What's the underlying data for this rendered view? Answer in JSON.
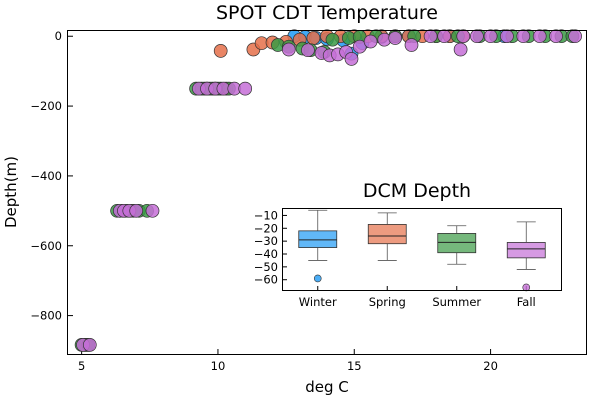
{
  "chart_data": [
    {
      "type": "scatter",
      "title": "SPOT CDT Temperature",
      "xlabel": "deg C",
      "ylabel": "Depth(m)",
      "xlim": [
        4.5,
        23.5
      ],
      "ylim": [
        -910,
        15
      ],
      "xticks": [
        5,
        10,
        15,
        20
      ],
      "yticks": [
        0,
        -200,
        -400,
        -600,
        -800
      ],
      "grid": false,
      "legend": "none",
      "series": [
        {
          "color": "#1e9af5",
          "points": [
            [
              5.1,
              -884
            ],
            [
              5.2,
              -884
            ],
            [
              6.4,
              -500
            ],
            [
              6.6,
              -500
            ],
            [
              6.9,
              -500
            ],
            [
              9.5,
              -150
            ],
            [
              9.8,
              -150
            ],
            [
              10.1,
              -150
            ],
            [
              12.8,
              0
            ],
            [
              13.2,
              -2
            ],
            [
              13.6,
              -5
            ],
            [
              14.0,
              -8
            ],
            [
              14.6,
              -12
            ],
            [
              14.9,
              -50
            ],
            [
              15.3,
              -20
            ],
            [
              16.0,
              -2
            ],
            [
              17.0,
              0
            ],
            [
              18.5,
              0
            ],
            [
              20.5,
              0
            ]
          ]
        },
        {
          "color": "#e5704a",
          "points": [
            [
              5.15,
              -884
            ],
            [
              6.5,
              -500
            ],
            [
              6.8,
              -500
            ],
            [
              9.6,
              -150
            ],
            [
              9.9,
              -150
            ],
            [
              10.3,
              -150
            ],
            [
              10.1,
              -42
            ],
            [
              11.3,
              -38
            ],
            [
              11.6,
              -20
            ],
            [
              12.0,
              -18
            ],
            [
              12.5,
              -16
            ],
            [
              13.0,
              -10
            ],
            [
              13.5,
              -5
            ],
            [
              14.0,
              0
            ],
            [
              14.5,
              0
            ],
            [
              15.0,
              0
            ],
            [
              15.5,
              0
            ],
            [
              16.0,
              0
            ],
            [
              16.5,
              0
            ],
            [
              17.0,
              0
            ],
            [
              17.5,
              0
            ],
            [
              18.0,
              0
            ],
            [
              18.5,
              0
            ],
            [
              19.0,
              0
            ]
          ]
        },
        {
          "color": "#3a9a44",
          "points": [
            [
              5.0,
              -884
            ],
            [
              5.25,
              -884
            ],
            [
              6.3,
              -500
            ],
            [
              6.7,
              -500
            ],
            [
              7.1,
              -500
            ],
            [
              7.4,
              -500
            ],
            [
              9.2,
              -150
            ],
            [
              9.4,
              -150
            ],
            [
              9.7,
              -150
            ],
            [
              10.0,
              -150
            ],
            [
              10.4,
              -150
            ],
            [
              12.2,
              -25
            ],
            [
              12.6,
              -30
            ],
            [
              13.1,
              -35
            ],
            [
              13.4,
              -40
            ],
            [
              13.9,
              -45
            ],
            [
              14.2,
              -10
            ],
            [
              14.8,
              -5
            ],
            [
              15.2,
              -2
            ],
            [
              15.8,
              0
            ],
            [
              16.5,
              0
            ],
            [
              17.2,
              0
            ],
            [
              18.0,
              0
            ],
            [
              18.8,
              0
            ],
            [
              19.6,
              0
            ],
            [
              20.2,
              0
            ],
            [
              20.8,
              0
            ],
            [
              21.4,
              0
            ],
            [
              22.0,
              0
            ],
            [
              22.6,
              0
            ],
            [
              23.0,
              0
            ]
          ]
        },
        {
          "color": "#c56fd7",
          "points": [
            [
              5.05,
              -884
            ],
            [
              5.3,
              -884
            ],
            [
              6.4,
              -500
            ],
            [
              6.55,
              -500
            ],
            [
              6.75,
              -500
            ],
            [
              7.0,
              -500
            ],
            [
              7.6,
              -500
            ],
            [
              9.3,
              -150
            ],
            [
              9.6,
              -150
            ],
            [
              9.9,
              -150
            ],
            [
              10.2,
              -150
            ],
            [
              10.6,
              -150
            ],
            [
              11.0,
              -150
            ],
            [
              12.6,
              -38
            ],
            [
              13.3,
              -40
            ],
            [
              13.8,
              -48
            ],
            [
              14.1,
              -55
            ],
            [
              14.4,
              -52
            ],
            [
              14.7,
              -45
            ],
            [
              14.9,
              -65
            ],
            [
              15.2,
              -30
            ],
            [
              15.6,
              -15
            ],
            [
              16.1,
              -10
            ],
            [
              16.5,
              -5
            ],
            [
              17.1,
              -25
            ],
            [
              17.8,
              0
            ],
            [
              18.3,
              0
            ],
            [
              18.9,
              -38
            ],
            [
              19.0,
              0
            ],
            [
              19.5,
              0
            ],
            [
              20.0,
              0
            ],
            [
              20.6,
              0
            ],
            [
              21.2,
              0
            ],
            [
              21.8,
              0
            ],
            [
              22.4,
              0
            ],
            [
              23.1,
              0
            ]
          ]
        }
      ]
    },
    {
      "type": "box",
      "title": "DCM Depth",
      "categories": [
        "Winter",
        "Spring",
        "Summer",
        "Fall"
      ],
      "colors": [
        "#1e9af5",
        "#e5704a",
        "#3a9a44",
        "#c56fd7"
      ],
      "ylim": [
        -68,
        -5
      ],
      "yticks": [
        -10,
        -20,
        -30,
        -40,
        -50,
        -60
      ],
      "boxes": [
        {
          "whisker_low": -45,
          "q1": -35,
          "median": -29,
          "q3": -22,
          "whisker_high": -6,
          "outliers": [
            -59
          ]
        },
        {
          "whisker_low": -45,
          "q1": -32,
          "median": -26,
          "q3": -17,
          "whisker_high": -8,
          "outliers": []
        },
        {
          "whisker_low": -48,
          "q1": -39,
          "median": -31,
          "q3": -24,
          "whisker_high": -18,
          "outliers": []
        },
        {
          "whisker_low": -52,
          "q1": -43,
          "median": -36,
          "q3": -31,
          "whisker_high": -15,
          "outliers": [
            -66
          ]
        }
      ]
    }
  ]
}
